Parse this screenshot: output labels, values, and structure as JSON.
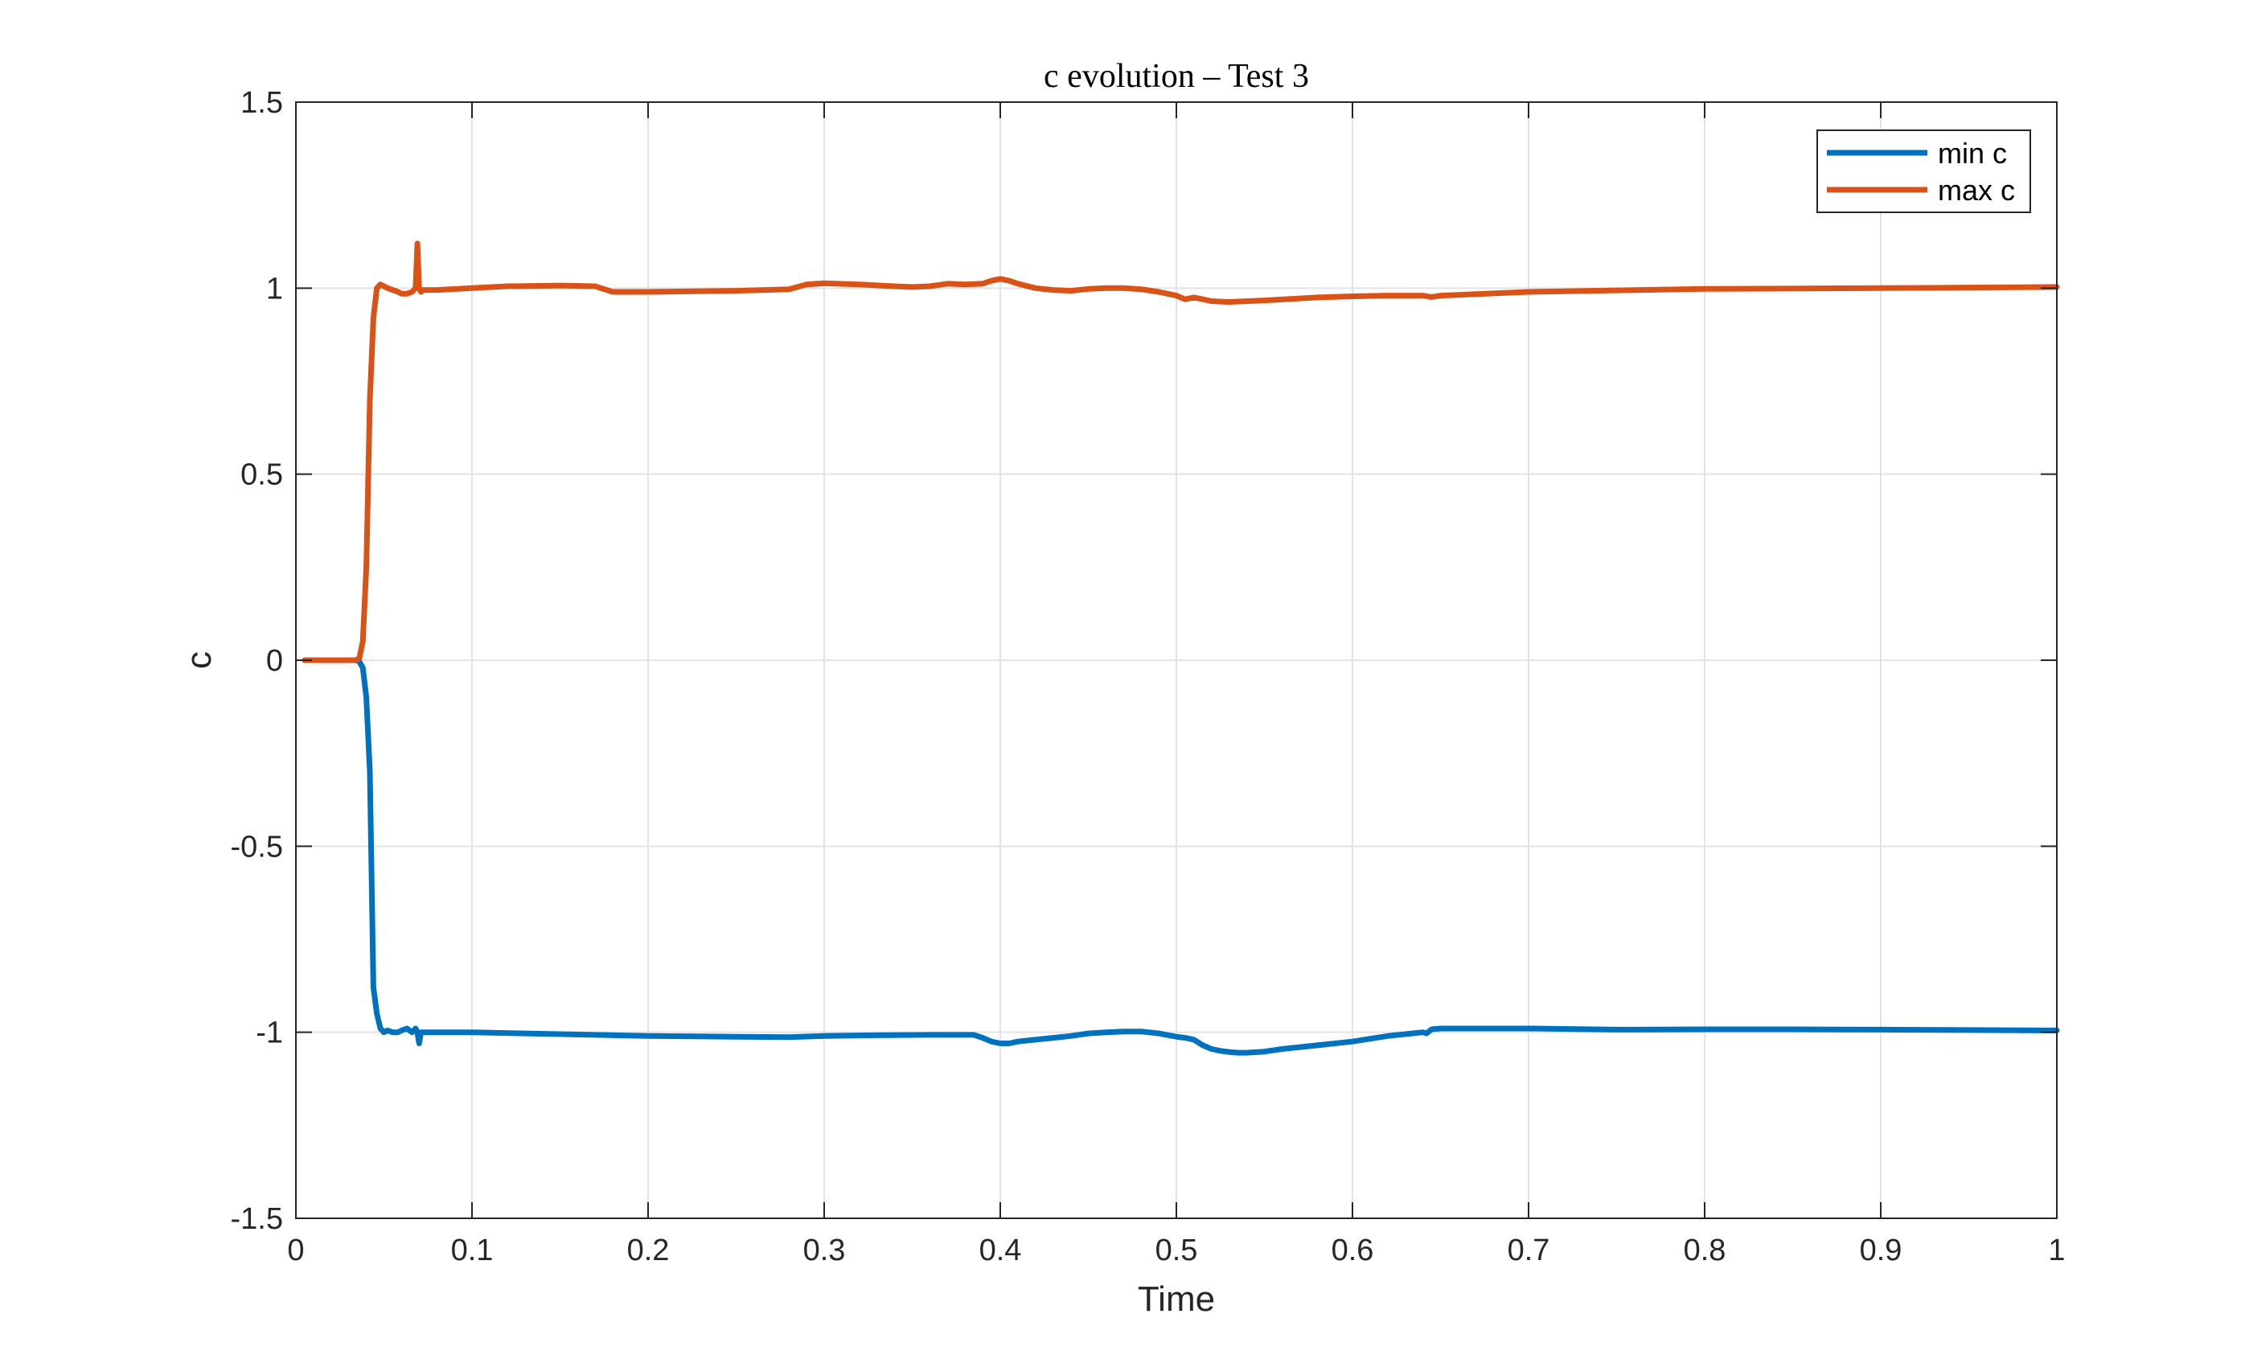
{
  "chart_data": {
    "type": "line",
    "title": "c evolution – Test 3",
    "xlabel": "Time",
    "ylabel": "c",
    "xlim": [
      0,
      1
    ],
    "ylim": [
      -1.5,
      1.5
    ],
    "xticks": [
      0,
      0.1,
      0.2,
      0.3,
      0.4,
      0.5,
      0.6,
      0.7,
      0.8,
      0.9,
      1
    ],
    "xtick_labels": [
      "0",
      "0.1",
      "0.2",
      "0.3",
      "0.4",
      "0.5",
      "0.6",
      "0.7",
      "0.8",
      "0.9",
      "1"
    ],
    "yticks": [
      -1.5,
      -1,
      -0.5,
      0,
      0.5,
      1,
      1.5
    ],
    "ytick_labels": [
      "-1.5",
      "-1",
      "-0.5",
      "0",
      "0.5",
      "1",
      "1.5"
    ],
    "grid": true,
    "legend_position": "top-right",
    "series": [
      {
        "name": "min c",
        "color": "#0072BD",
        "x": [
          0.005,
          0.034,
          0.036,
          0.038,
          0.04,
          0.042,
          0.044,
          0.046,
          0.048,
          0.05,
          0.052,
          0.055,
          0.058,
          0.06,
          0.063,
          0.066,
          0.068,
          0.069,
          0.07,
          0.071,
          0.072,
          0.075,
          0.08,
          0.1,
          0.15,
          0.2,
          0.25,
          0.28,
          0.3,
          0.33,
          0.36,
          0.385,
          0.39,
          0.395,
          0.4,
          0.405,
          0.41,
          0.42,
          0.43,
          0.44,
          0.45,
          0.46,
          0.47,
          0.48,
          0.49,
          0.5,
          0.505,
          0.51,
          0.515,
          0.52,
          0.525,
          0.53,
          0.535,
          0.54,
          0.55,
          0.56,
          0.58,
          0.6,
          0.62,
          0.63,
          0.64,
          0.642,
          0.645,
          0.65,
          0.67,
          0.7,
          0.75,
          0.8,
          0.85,
          0.9,
          0.95,
          1.0
        ],
        "values": [
          0,
          0,
          -0.003,
          -0.02,
          -0.1,
          -0.3,
          -0.88,
          -0.95,
          -0.99,
          -1.0,
          -0.995,
          -1.0,
          -1.0,
          -0.995,
          -0.99,
          -1.0,
          -0.99,
          -1.0,
          -1.03,
          -1.0,
          -1.0,
          -1.0,
          -1.0,
          -1.0,
          -1.005,
          -1.01,
          -1.012,
          -1.013,
          -1.01,
          -1.008,
          -1.007,
          -1.007,
          -1.015,
          -1.025,
          -1.03,
          -1.03,
          -1.025,
          -1.02,
          -1.015,
          -1.01,
          -1.003,
          -1.0,
          -0.998,
          -0.998,
          -1.003,
          -1.012,
          -1.015,
          -1.02,
          -1.035,
          -1.045,
          -1.05,
          -1.053,
          -1.055,
          -1.055,
          -1.052,
          -1.045,
          -1.035,
          -1.025,
          -1.01,
          -1.005,
          -1.0,
          -1.003,
          -0.992,
          -0.99,
          -0.99,
          -0.99,
          -0.993,
          -0.992,
          -0.992,
          -0.993,
          -0.994,
          -0.995
        ]
      },
      {
        "name": "max c",
        "color": "#D95319",
        "x": [
          0.005,
          0.034,
          0.036,
          0.038,
          0.04,
          0.042,
          0.044,
          0.046,
          0.048,
          0.05,
          0.052,
          0.055,
          0.058,
          0.06,
          0.063,
          0.066,
          0.068,
          0.069,
          0.07,
          0.071,
          0.072,
          0.075,
          0.08,
          0.1,
          0.12,
          0.15,
          0.17,
          0.18,
          0.2,
          0.25,
          0.28,
          0.29,
          0.3,
          0.32,
          0.34,
          0.35,
          0.36,
          0.37,
          0.38,
          0.39,
          0.395,
          0.4,
          0.405,
          0.41,
          0.42,
          0.43,
          0.44,
          0.45,
          0.46,
          0.47,
          0.48,
          0.49,
          0.5,
          0.505,
          0.51,
          0.515,
          0.52,
          0.53,
          0.55,
          0.58,
          0.6,
          0.62,
          0.64,
          0.645,
          0.65,
          0.7,
          0.8,
          0.9,
          1.0
        ],
        "values": [
          0,
          0,
          0.005,
          0.05,
          0.25,
          0.7,
          0.92,
          1.0,
          1.01,
          1.005,
          1.0,
          0.995,
          0.99,
          0.985,
          0.985,
          0.99,
          1.0,
          1.12,
          1.0,
          0.99,
          0.995,
          0.995,
          0.995,
          1.0,
          1.005,
          1.007,
          1.005,
          0.99,
          0.99,
          0.993,
          0.997,
          1.01,
          1.013,
          1.01,
          1.005,
          1.003,
          1.005,
          1.012,
          1.01,
          1.012,
          1.02,
          1.025,
          1.02,
          1.012,
          1.0,
          0.995,
          0.993,
          0.998,
          1.0,
          1.0,
          0.997,
          0.99,
          0.98,
          0.97,
          0.975,
          0.97,
          0.965,
          0.963,
          0.967,
          0.975,
          0.978,
          0.98,
          0.98,
          0.976,
          0.98,
          0.99,
          0.998,
          1.0,
          1.003
        ]
      }
    ]
  }
}
